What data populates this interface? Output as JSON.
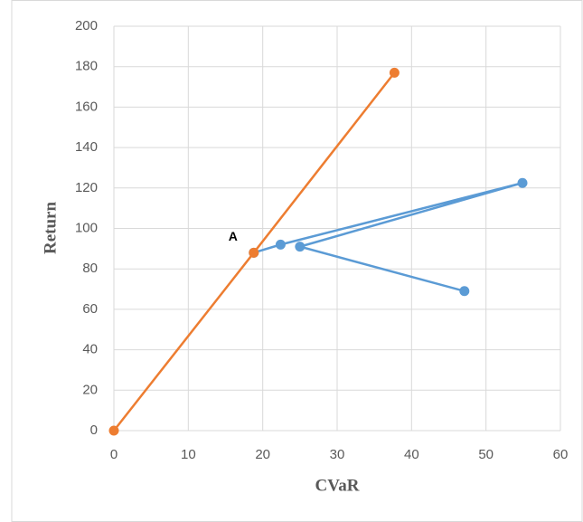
{
  "chart_data": {
    "type": "scatter",
    "x_label": "CVaR",
    "y_label": "Return",
    "annotation": "A",
    "xlim": [
      0,
      60
    ],
    "xticks": [
      0,
      10,
      20,
      30,
      40,
      50,
      60
    ],
    "ylim": [
      0,
      200
    ],
    "yticks": [
      0,
      20,
      40,
      60,
      80,
      100,
      120,
      140,
      160,
      180,
      200
    ],
    "grid": true,
    "series": [
      {
        "color": "#5b9bd5",
        "x": [
          18.8,
          22.4,
          54.9,
          25.0,
          47.1
        ],
        "values": [
          88,
          92,
          122.5,
          91,
          69
        ]
      },
      {
        "color": "#ed7d31",
        "x": [
          0,
          18.8,
          37.7
        ],
        "values": [
          0,
          88,
          177
        ]
      }
    ]
  }
}
